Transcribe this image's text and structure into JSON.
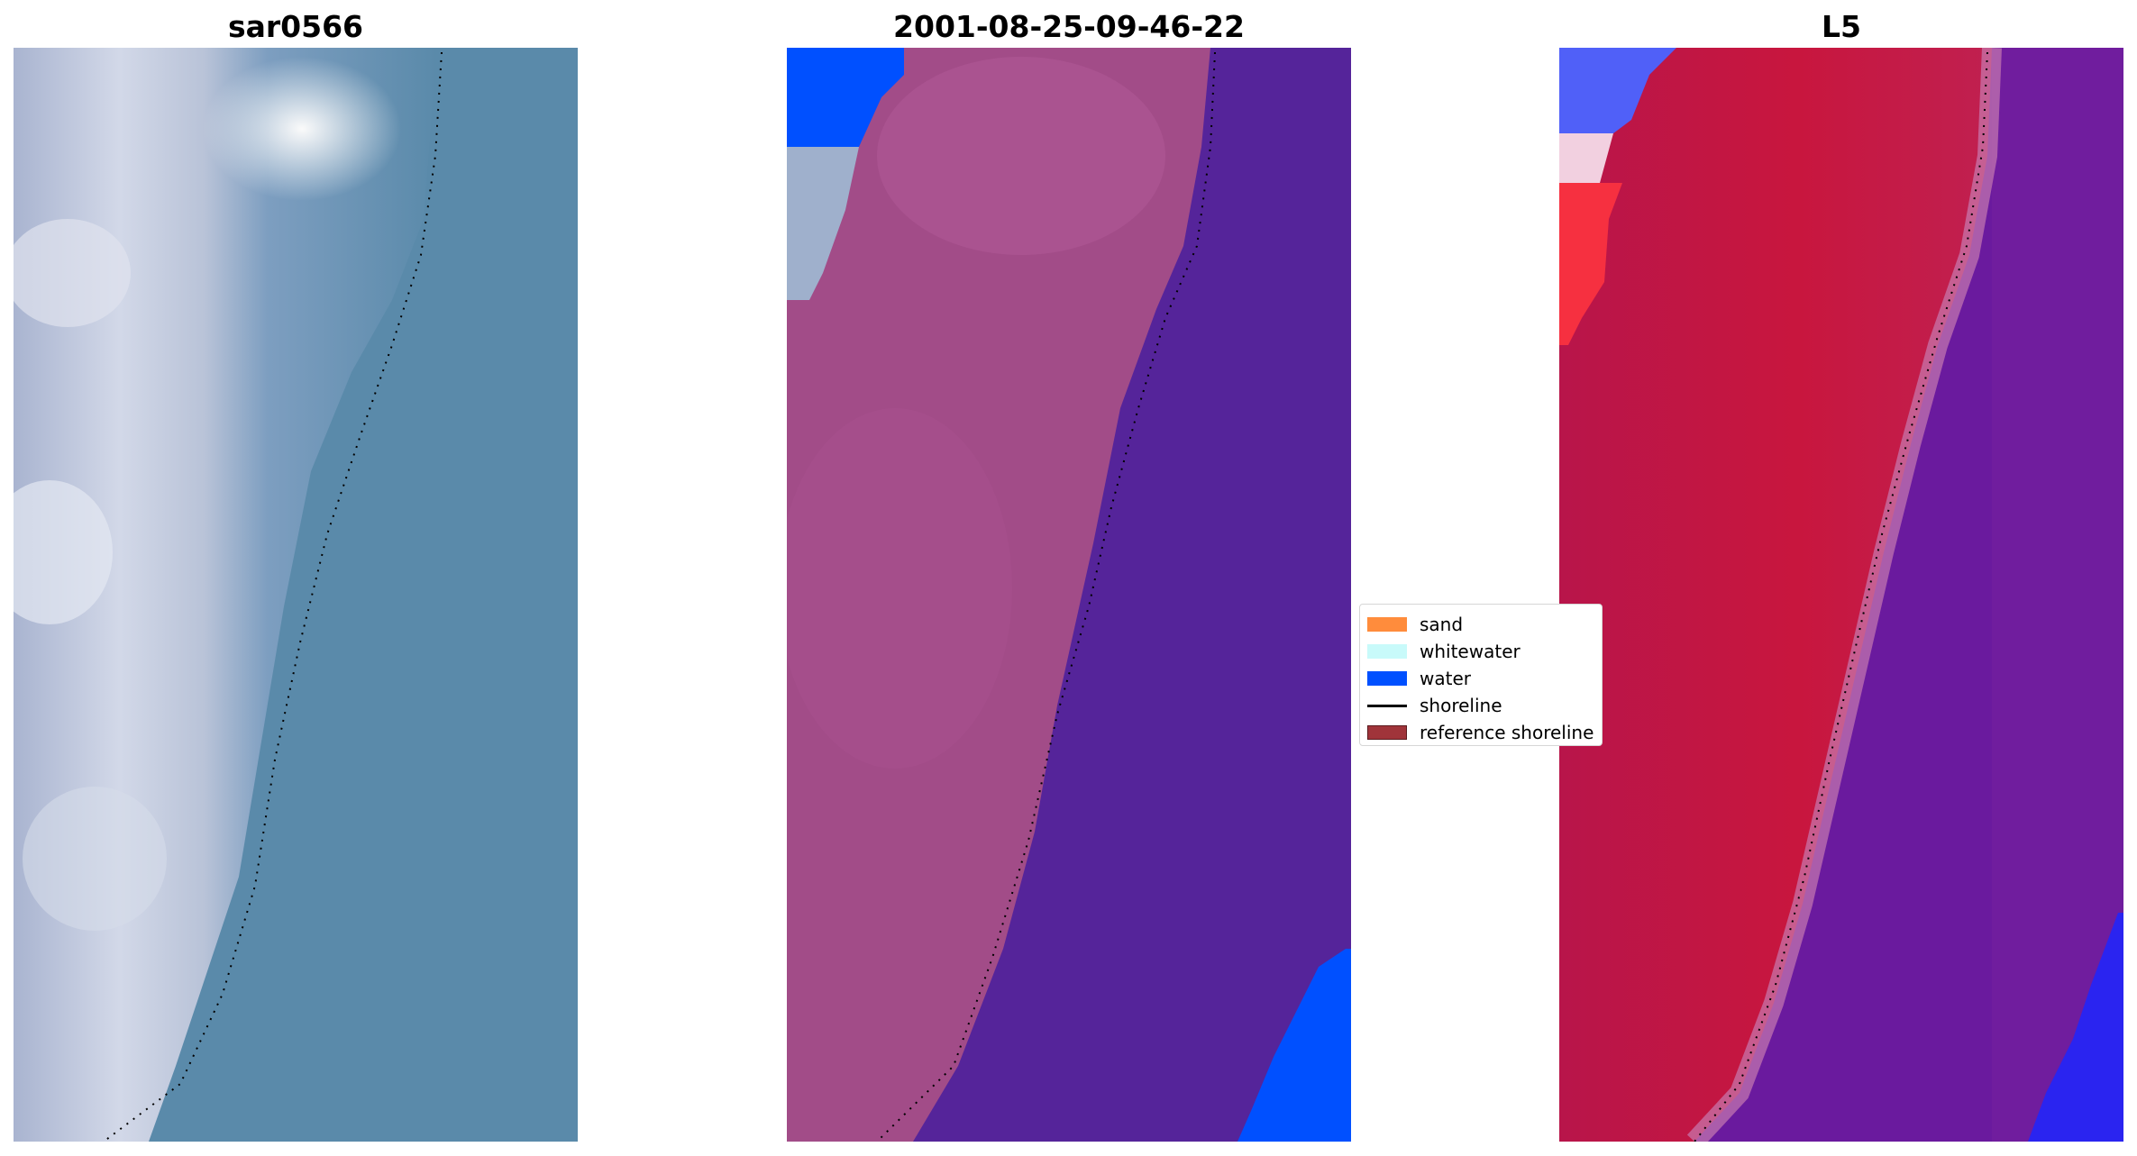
{
  "panels": [
    {
      "title": "sar0566"
    },
    {
      "title": "2001-08-25-09-46-22"
    },
    {
      "title": "L5"
    }
  ],
  "legend": {
    "items": [
      {
        "label": "sand",
        "kind": "patch",
        "color": "#ff8c3c"
      },
      {
        "label": "whitewater",
        "kind": "patch",
        "color": "#c8fafa"
      },
      {
        "label": "water",
        "kind": "patch",
        "color": "#0050ff"
      },
      {
        "label": "shoreline",
        "kind": "line",
        "color": "#000000"
      },
      {
        "label": "reference shoreline",
        "kind": "patch",
        "color": "#a0343a"
      }
    ]
  },
  "colors": {
    "rgb_water": "#5a8aaa",
    "rgb_land": "#c0c8dc",
    "classified_water": "#55249a",
    "classified_land": "#a24c88",
    "false_color_land": "#c01845",
    "false_color_water": "#6a1a9e"
  }
}
